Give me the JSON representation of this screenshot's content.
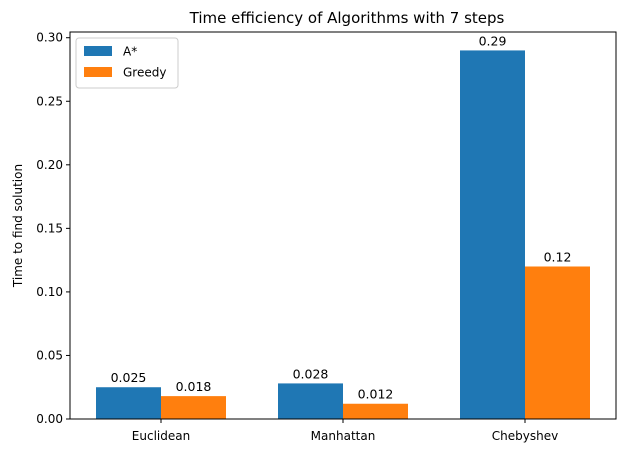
{
  "chart_data": {
    "type": "bar",
    "title": "Time efficiency of Algorithms with 7 steps",
    "xlabel": "",
    "ylabel": "Time to find solution",
    "categories": [
      "Euclidean",
      "Manhattan",
      "Chebyshev"
    ],
    "series": [
      {
        "name": "A*",
        "values": [
          0.025,
          0.028,
          0.29
        ],
        "labels": [
          "0.025",
          "0.028",
          "0.29"
        ],
        "color": "#1f77b4"
      },
      {
        "name": "Greedy",
        "values": [
          0.018,
          0.012,
          0.12
        ],
        "labels": [
          "0.018",
          "0.012",
          "0.12"
        ],
        "color": "#ff7f0e"
      }
    ],
    "ylim": [
      0,
      0.3045
    ],
    "yticks": [
      0.0,
      0.05,
      0.1,
      0.15,
      0.2,
      0.25,
      0.3
    ],
    "ytick_labels": [
      "0.00",
      "0.05",
      "0.10",
      "0.15",
      "0.20",
      "0.25",
      "0.30"
    ],
    "grid": false,
    "legend_position": "top-left"
  }
}
